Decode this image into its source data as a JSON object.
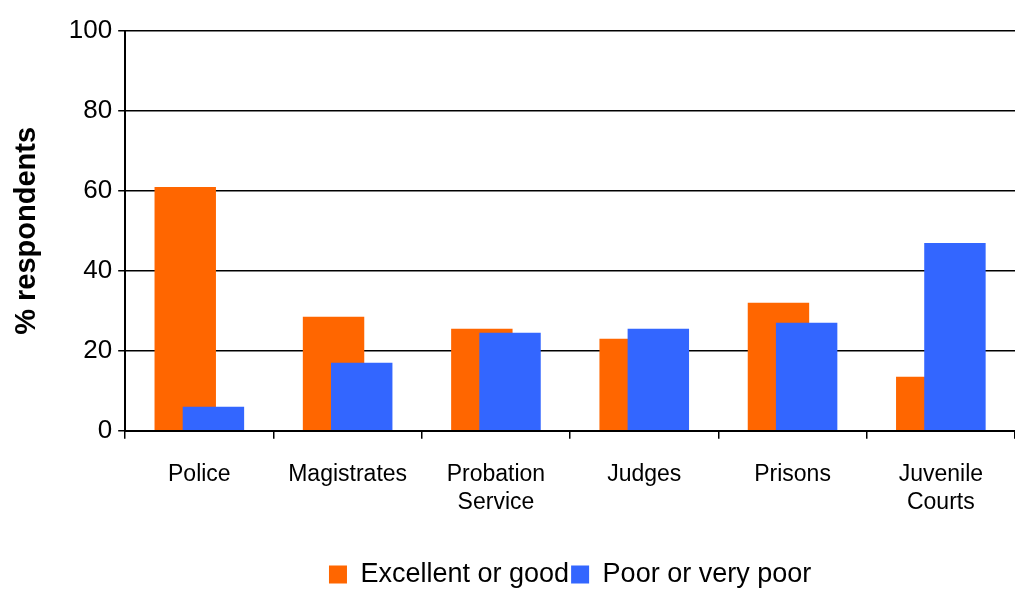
{
  "chart_data": {
    "type": "bar",
    "ylabel": "% respondents",
    "categories": [
      "Police",
      "Magistrates",
      "Probation Service",
      "Judges",
      "Prisons",
      "Juvenile Courts"
    ],
    "series": [
      {
        "name": "Excellent or good",
        "color": "#ff6600",
        "values": [
          61,
          28.5,
          25.5,
          23,
          32,
          13.5
        ]
      },
      {
        "name": "Poor or very poor",
        "color": "#3366ff",
        "values": [
          6,
          17,
          24.5,
          25.5,
          27,
          47
        ]
      }
    ],
    "ylim": [
      0,
      100
    ],
    "yticks": [
      0,
      20,
      40,
      60,
      80,
      100
    ],
    "grid": "y",
    "legend": "bottom"
  }
}
